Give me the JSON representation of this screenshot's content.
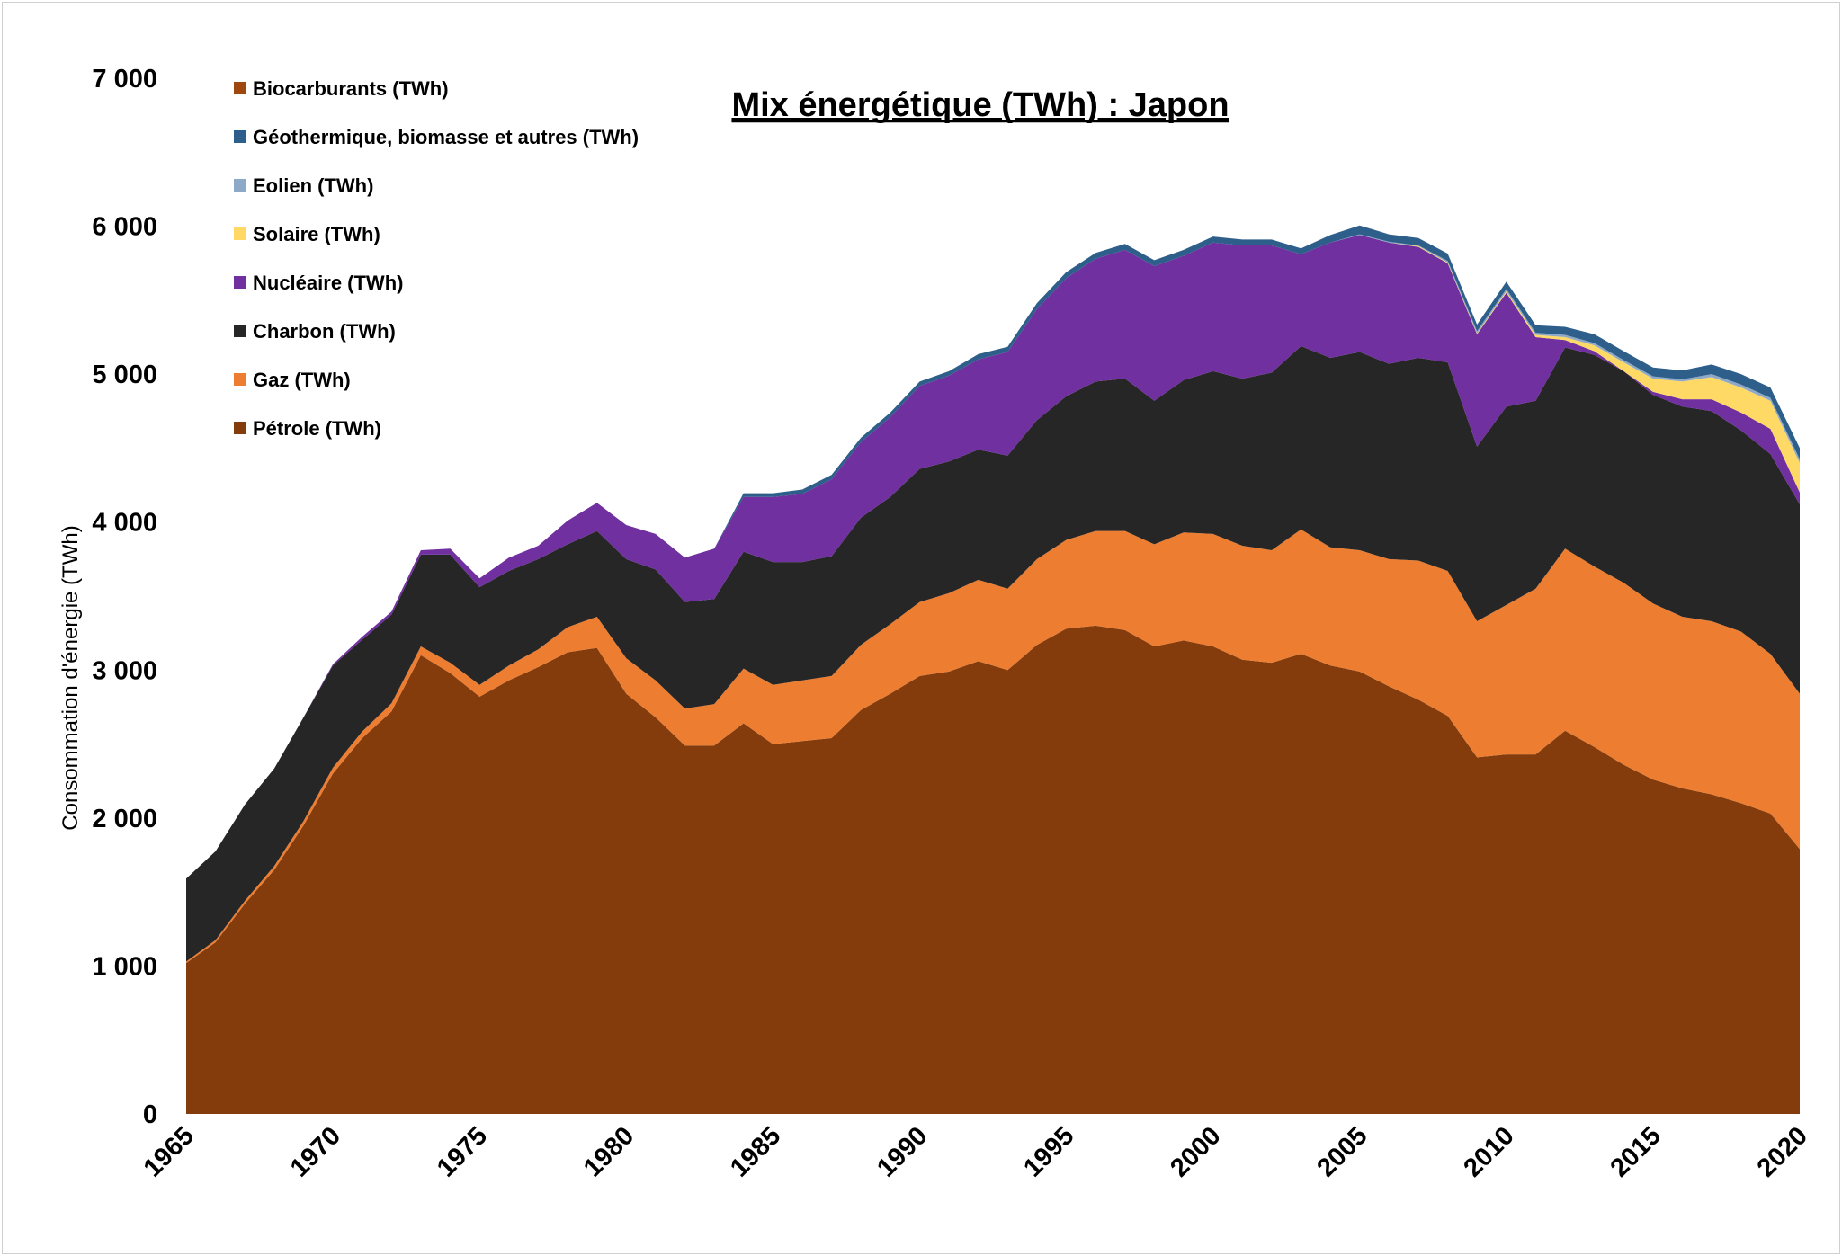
{
  "chart_data": {
    "type": "area",
    "stacked": true,
    "title": "Mix énergétique (TWh) : Japon",
    "ylabel": "Consommation d'énergie (TWh)",
    "xlabel": "",
    "xlim": [
      1965,
      2020
    ],
    "ylim": [
      0,
      7000
    ],
    "x": [
      1965,
      1966,
      1967,
      1968,
      1969,
      1970,
      1971,
      1972,
      1973,
      1974,
      1975,
      1976,
      1977,
      1978,
      1979,
      1980,
      1981,
      1982,
      1983,
      1984,
      1985,
      1986,
      1987,
      1988,
      1989,
      1990,
      1991,
      1992,
      1993,
      1994,
      1995,
      1996,
      1997,
      1998,
      1999,
      2000,
      2001,
      2002,
      2003,
      2004,
      2005,
      2006,
      2007,
      2008,
      2009,
      2010,
      2011,
      2012,
      2013,
      2014,
      2015,
      2016,
      2017,
      2018,
      2019,
      2020
    ],
    "x_tick_labels": [
      "1965",
      "1970",
      "1975",
      "1980",
      "1985",
      "1990",
      "1995",
      "2000",
      "2005",
      "2010",
      "2015",
      "2020"
    ],
    "y_tick_labels": [
      "0",
      "1 000",
      "2 000",
      "3 000",
      "4 000",
      "5 000",
      "6 000",
      "7 000"
    ],
    "y_tick_values": [
      0,
      1000,
      2000,
      3000,
      4000,
      5000,
      6000,
      7000
    ],
    "legend_position": "top-left",
    "series": [
      {
        "name": "Pétrole (TWh)",
        "color": "#843C0C",
        "values": [
          1020,
          1160,
          1420,
          1650,
          1950,
          2300,
          2540,
          2720,
          3100,
          2980,
          2820,
          2930,
          3020,
          3120,
          3150,
          2840,
          2680,
          2490,
          2490,
          2640,
          2500,
          2520,
          2540,
          2730,
          2840,
          2960,
          2990,
          3060,
          3000,
          3170,
          3280,
          3300,
          3270,
          3160,
          3200,
          3160,
          3070,
          3050,
          3110,
          3030,
          2990,
          2890,
          2800,
          2690,
          2410,
          2430,
          2430,
          2590,
          2480,
          2360,
          2260,
          2200,
          2160,
          2100,
          2030,
          1790
        ]
      },
      {
        "name": "Gaz (TWh)",
        "color": "#ED7D31",
        "values": [
          10,
          15,
          20,
          25,
          30,
          40,
          45,
          55,
          60,
          70,
          80,
          100,
          120,
          170,
          210,
          240,
          250,
          250,
          280,
          370,
          400,
          410,
          420,
          440,
          470,
          500,
          530,
          550,
          550,
          580,
          600,
          640,
          670,
          690,
          730,
          760,
          770,
          760,
          840,
          800,
          820,
          860,
          940,
          980,
          920,
          1010,
          1120,
          1230,
          1220,
          1230,
          1190,
          1160,
          1170,
          1160,
          1080,
          1050
        ]
      },
      {
        "name": "Charbon (TWh)",
        "color": "#262626",
        "values": [
          560,
          600,
          650,
          660,
          700,
          690,
          620,
          600,
          620,
          730,
          660,
          640,
          610,
          560,
          580,
          670,
          750,
          720,
          710,
          790,
          830,
          800,
          810,
          860,
          860,
          900,
          890,
          880,
          900,
          940,
          970,
          1010,
          1030,
          970,
          1030,
          1100,
          1130,
          1200,
          1240,
          1280,
          1340,
          1320,
          1370,
          1410,
          1180,
          1340,
          1270,
          1360,
          1430,
          1430,
          1410,
          1420,
          1420,
          1360,
          1350,
          1280
        ]
      },
      {
        "name": "Nucléaire (TWh)",
        "color": "#7030A0",
        "values": [
          0,
          0,
          0,
          0,
          0,
          10,
          20,
          20,
          30,
          40,
          60,
          90,
          90,
          160,
          190,
          230,
          240,
          300,
          340,
          370,
          440,
          460,
          520,
          510,
          540,
          560,
          580,
          610,
          700,
          750,
          800,
          830,
          870,
          910,
          840,
          870,
          900,
          860,
          620,
          780,
          790,
          820,
          750,
          670,
          760,
          770,
          430,
          50,
          25,
          0,
          20,
          50,
          80,
          120,
          170,
          80
        ]
      },
      {
        "name": "Solaire (TWh)",
        "color": "#FFD966",
        "values": [
          0,
          0,
          0,
          0,
          0,
          0,
          0,
          0,
          0,
          0,
          0,
          0,
          0,
          0,
          0,
          0,
          0,
          0,
          0,
          0,
          0,
          0,
          0,
          0,
          0,
          0,
          0,
          0,
          0,
          0,
          0,
          0,
          0,
          0,
          0,
          0,
          0,
          0,
          0,
          0,
          0,
          0,
          5,
          5,
          5,
          10,
          15,
          20,
          40,
          60,
          90,
          120,
          150,
          170,
          190,
          200
        ]
      },
      {
        "name": "Eolien (TWh)",
        "color": "#8EA9C8",
        "values": [
          0,
          0,
          0,
          0,
          0,
          0,
          0,
          0,
          0,
          0,
          0,
          0,
          0,
          0,
          0,
          0,
          0,
          0,
          0,
          0,
          0,
          0,
          0,
          0,
          0,
          0,
          0,
          0,
          0,
          0,
          0,
          0,
          0,
          0,
          0,
          0,
          0,
          0,
          0,
          0,
          5,
          5,
          5,
          10,
          15,
          15,
          15,
          15,
          15,
          15,
          15,
          15,
          20,
          20,
          20,
          25
        ]
      },
      {
        "name": "Géothermique, biomasse et autres (TWh)",
        "color": "#2E5F8A",
        "values": [
          0,
          0,
          0,
          0,
          0,
          0,
          0,
          0,
          0,
          0,
          0,
          0,
          0,
          0,
          0,
          0,
          0,
          0,
          0,
          25,
          25,
          30,
          30,
          30,
          30,
          30,
          30,
          35,
          35,
          40,
          40,
          40,
          40,
          40,
          40,
          40,
          40,
          40,
          40,
          50,
          60,
          50,
          50,
          50,
          45,
          50,
          50,
          55,
          60,
          60,
          60,
          60,
          65,
          70,
          70,
          75
        ]
      },
      {
        "name": "Biocarburants (TWh)",
        "color": "#9E480E",
        "values": [
          0,
          0,
          0,
          0,
          0,
          0,
          0,
          0,
          0,
          0,
          0,
          0,
          0,
          0,
          0,
          0,
          0,
          0,
          0,
          0,
          0,
          0,
          0,
          0,
          0,
          0,
          0,
          0,
          0,
          0,
          0,
          0,
          0,
          0,
          0,
          0,
          0,
          0,
          0,
          0,
          0,
          0,
          0,
          0,
          0,
          0,
          0,
          0,
          0,
          0,
          0,
          0,
          0,
          0,
          0,
          0
        ]
      }
    ]
  }
}
